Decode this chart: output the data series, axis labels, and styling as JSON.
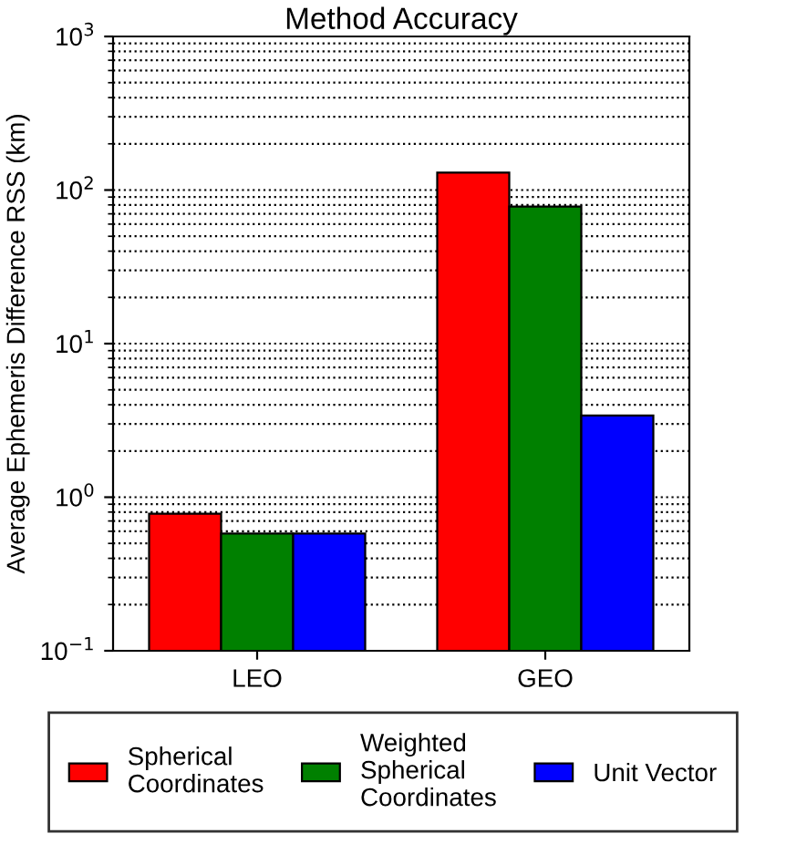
{
  "chart_data": {
    "type": "bar",
    "title": "Method Accuracy",
    "ylabel": "Average Ephemeris Difference RSS (km)",
    "categories": [
      "LEO",
      "GEO"
    ],
    "series": [
      {
        "name": "Spherical\nCoordinates",
        "color": "#ff0000",
        "values": [
          0.78,
          130
        ]
      },
      {
        "name": "Weighted\nSpherical\nCoordinates",
        "color": "#008000",
        "values": [
          0.58,
          78
        ]
      },
      {
        "name": "Unit Vector",
        "color": "#0000ff",
        "values": [
          0.58,
          3.4
        ]
      }
    ],
    "log": "y",
    "ylim": [
      0.1,
      1000
    ],
    "yticks": [
      {
        "value": 0.1,
        "label": "10$^{−1}$"
      },
      {
        "value": 1,
        "label": "10$^{0}$"
      },
      {
        "value": 10,
        "label": "10$^{1}$"
      },
      {
        "value": 100,
        "label": "10$^{2}$"
      },
      {
        "value": 1000,
        "label": "10$^{3}$"
      }
    ],
    "grid": "y",
    "legend": "bottom"
  }
}
